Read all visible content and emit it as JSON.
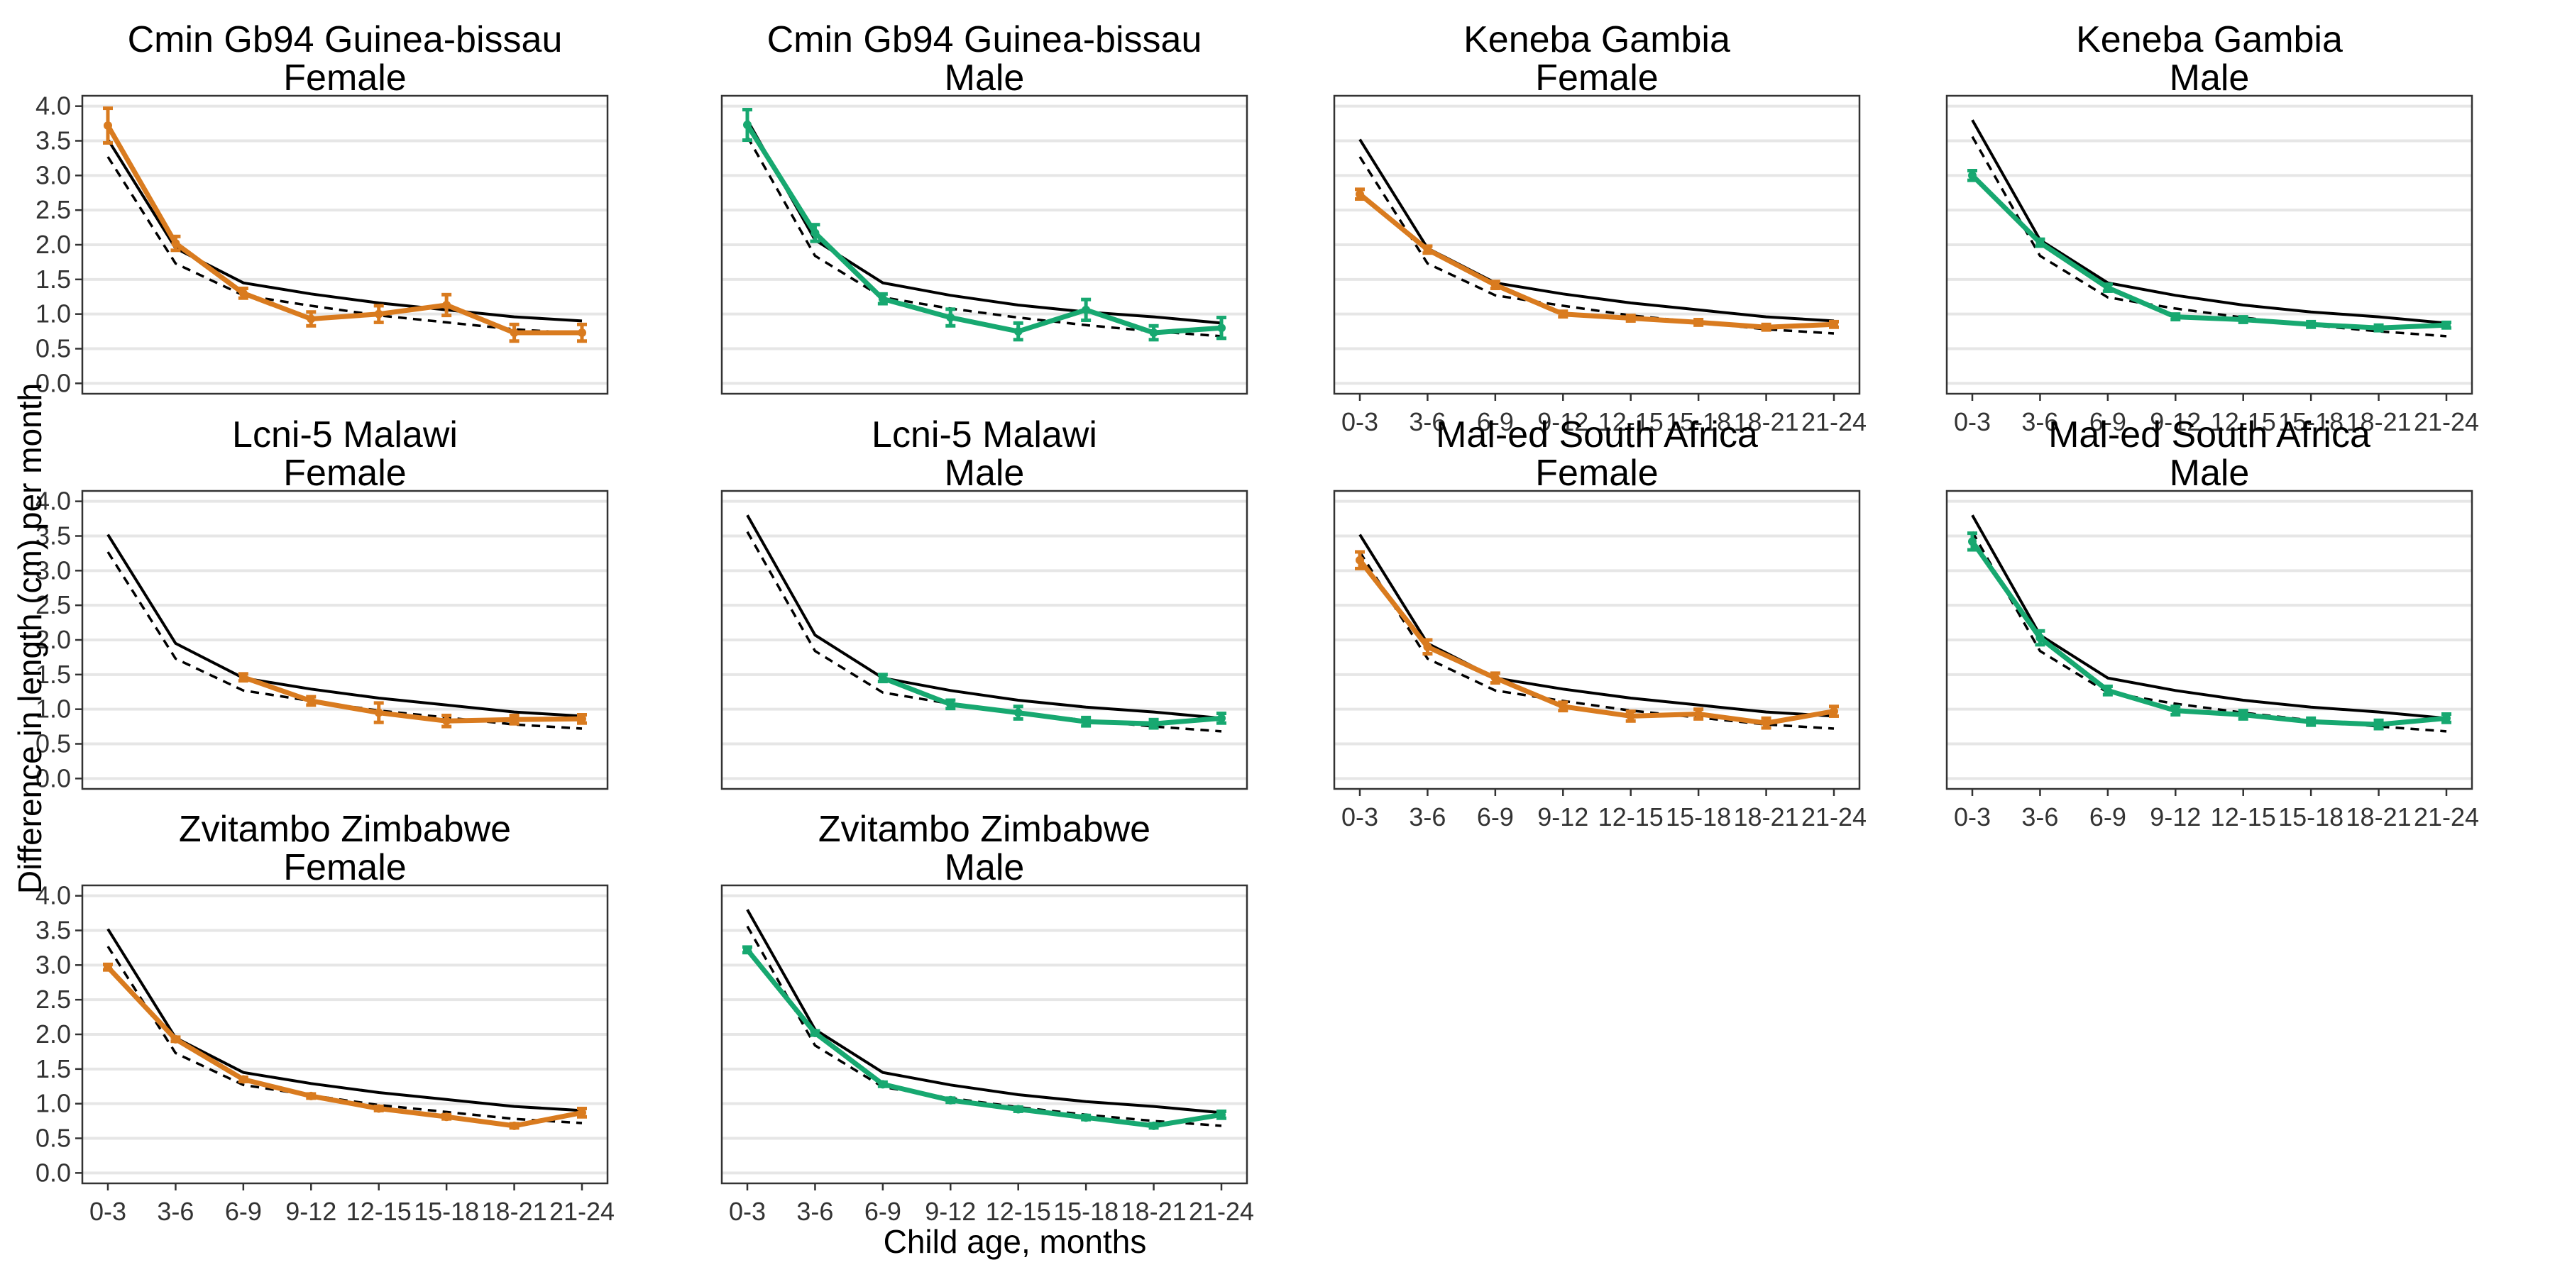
{
  "chart_data": {
    "type": "line",
    "ylabel": "Difference in length (cm) per month",
    "xlabel": "Child age, months",
    "categories": [
      "0-3",
      "3-6",
      "6-9",
      "9-12",
      "12-15",
      "15-18",
      "18-21",
      "21-24"
    ],
    "ylim": [
      -0.15,
      4.15
    ],
    "yticks": [
      "0.0",
      "0.5",
      "1.0",
      "1.5",
      "2.0",
      "2.5",
      "3.0",
      "3.5",
      "4.0"
    ],
    "grid": true,
    "colors": {
      "Female": "#D97B1F",
      "Male": "#17A870",
      "reference": "#000000"
    },
    "reference": {
      "Female": {
        "solid": [
          3.52,
          1.95,
          1.45,
          1.29,
          1.16,
          1.06,
          0.96,
          0.9
        ],
        "dashed": [
          3.27,
          1.73,
          1.27,
          1.12,
          0.98,
          0.88,
          0.78,
          0.72
        ]
      },
      "Male": {
        "solid": [
          3.8,
          2.07,
          1.45,
          1.27,
          1.13,
          1.03,
          0.96,
          0.87
        ],
        "dashed": [
          3.56,
          1.84,
          1.24,
          1.08,
          0.95,
          0.84,
          0.75,
          0.68
        ]
      }
    },
    "panels": [
      {
        "title_line1": "Cmin Gb94 Guinea-bissau",
        "title_line2": "Female",
        "sex": "Female",
        "values": [
          3.72,
          2.02,
          1.3,
          0.93,
          1.0,
          1.13,
          0.73,
          0.73
        ],
        "error": [
          0.25,
          0.1,
          0.07,
          0.1,
          0.12,
          0.15,
          0.12,
          0.12
        ]
      },
      {
        "title_line1": "Cmin Gb94 Guinea-bissau",
        "title_line2": "Male",
        "sex": "Male",
        "values": [
          3.73,
          2.17,
          1.22,
          0.95,
          0.75,
          1.06,
          0.73,
          0.8
        ],
        "error": [
          0.22,
          0.12,
          0.07,
          0.12,
          0.12,
          0.15,
          0.1,
          0.15
        ]
      },
      {
        "title_line1": "Keneba Gambia",
        "title_line2": "Female",
        "sex": "Female",
        "values": [
          2.73,
          1.93,
          1.42,
          1.0,
          0.94,
          0.88,
          0.81,
          0.85
        ],
        "error": [
          0.07,
          0.05,
          0.05,
          0.04,
          0.04,
          0.04,
          0.04,
          0.04
        ]
      },
      {
        "title_line1": "Keneba Gambia",
        "title_line2": "Male",
        "sex": "Male",
        "values": [
          3.0,
          2.03,
          1.38,
          0.96,
          0.92,
          0.85,
          0.8,
          0.84
        ],
        "error": [
          0.07,
          0.05,
          0.05,
          0.04,
          0.04,
          0.04,
          0.04,
          0.04
        ]
      },
      {
        "title_line1": "Lcni-5 Malawi",
        "title_line2": "Female",
        "sex": "Female",
        "values": [
          null,
          null,
          1.46,
          1.12,
          0.95,
          0.83,
          0.85,
          0.86
        ],
        "error": [
          null,
          null,
          0.05,
          0.06,
          0.14,
          0.08,
          0.06,
          0.06
        ]
      },
      {
        "title_line1": "Lcni-5 Malawi",
        "title_line2": "Male",
        "sex": "Male",
        "values": [
          null,
          null,
          1.45,
          1.07,
          0.95,
          0.82,
          0.79,
          0.87
        ],
        "error": [
          null,
          null,
          0.05,
          0.06,
          0.09,
          0.06,
          0.06,
          0.07
        ]
      },
      {
        "title_line1": "Mal-ed South Africa",
        "title_line2": "Female",
        "sex": "Female",
        "values": [
          3.15,
          1.9,
          1.45,
          1.04,
          0.9,
          0.93,
          0.8,
          0.97
        ],
        "error": [
          0.12,
          0.1,
          0.07,
          0.06,
          0.07,
          0.07,
          0.07,
          0.07
        ]
      },
      {
        "title_line1": "Mal-ed South Africa",
        "title_line2": "Male",
        "sex": "Male",
        "values": [
          3.42,
          2.03,
          1.27,
          0.98,
          0.92,
          0.82,
          0.78,
          0.87
        ],
        "error": [
          0.12,
          0.1,
          0.06,
          0.06,
          0.06,
          0.05,
          0.06,
          0.06
        ]
      },
      {
        "title_line1": "Zvitambo Zimbabwe",
        "title_line2": "Female",
        "sex": "Female",
        "values": [
          2.97,
          1.93,
          1.35,
          1.11,
          0.93,
          0.81,
          0.68,
          0.87
        ],
        "error": [
          0.04,
          0.03,
          0.03,
          0.03,
          0.03,
          0.03,
          0.03,
          0.06
        ]
      },
      {
        "title_line1": "Zvitambo Zimbabwe",
        "title_line2": "Male",
        "sex": "Male",
        "values": [
          3.22,
          2.02,
          1.28,
          1.05,
          0.92,
          0.8,
          0.68,
          0.84
        ],
        "error": [
          0.04,
          0.03,
          0.03,
          0.03,
          0.03,
          0.03,
          0.03,
          0.05
        ]
      }
    ],
    "x_tick_labels_shown_on": [
      "Keneba Gambia Female",
      "Keneba Gambia Male",
      "Mal-ed South Africa Female",
      "Mal-ed South Africa Male",
      "Zvitambo Zimbabwe Female",
      "Zvitambo Zimbabwe Male"
    ]
  }
}
